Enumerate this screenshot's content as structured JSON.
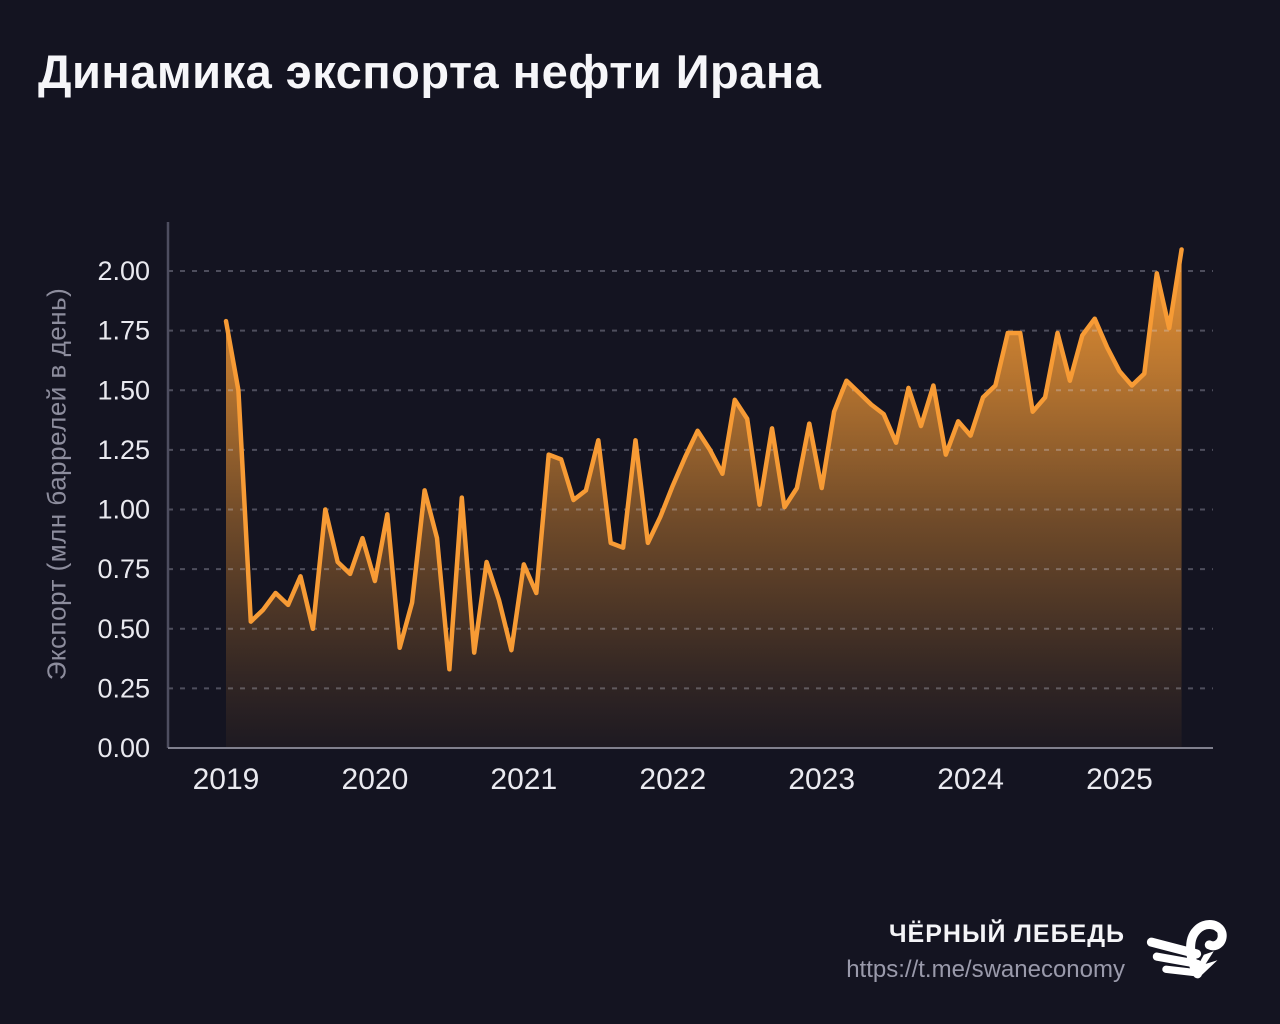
{
  "title": "Динамика экспорта нефти Ирана",
  "footer": {
    "brand": "ЧЁРНЫЙ ЛЕБЕДЬ",
    "url": "https://t.me/swaneconomy",
    "logo_icon": "swan-icon"
  },
  "colors": {
    "background": "#141421",
    "line": "#f79b35",
    "area_fill_base": "#f79b35",
    "grid": "rgba(215,215,232,0.30)",
    "y_axis_line": "#4e4e60",
    "x_axis_line": "#80808e",
    "tick_text": "#eaeaf0",
    "axis_label_text": "#8d8d9d",
    "title_text": "#f6f6f9",
    "footer_brand_text": "#f4f4f7",
    "footer_url_text": "#9a9aab"
  },
  "chart_data": {
    "type": "area",
    "title": "Динамика экспорта нефти Ирана",
    "xlabel": "",
    "ylabel": "Экспорт (млн баррелей в день)",
    "series_name": "Экспорт нефти Ирана, млн баррелей в день",
    "frequency": "monthly",
    "x_start": "2019-01",
    "x_end": "2025-06",
    "ylim": [
      0,
      2.2
    ],
    "grid": true,
    "grid_style": "dashed",
    "legend": "none",
    "y_ticks": [
      "0.00",
      "0.25",
      "0.50",
      "0.75",
      "1.00",
      "1.25",
      "1.50",
      "1.75",
      "2.00"
    ],
    "x_ticks": [
      "2019",
      "2020",
      "2021",
      "2022",
      "2023",
      "2024",
      "2025"
    ],
    "values": [
      1.79,
      1.5,
      0.53,
      0.58,
      0.65,
      0.6,
      0.72,
      0.5,
      1.0,
      0.78,
      0.73,
      0.88,
      0.7,
      0.98,
      0.42,
      0.61,
      1.08,
      0.88,
      0.33,
      1.05,
      0.4,
      0.78,
      0.62,
      0.41,
      0.77,
      0.65,
      1.23,
      1.21,
      1.04,
      1.08,
      1.29,
      0.86,
      0.84,
      1.29,
      0.86,
      0.97,
      1.1,
      1.22,
      1.33,
      1.25,
      1.15,
      1.46,
      1.38,
      1.02,
      1.34,
      1.01,
      1.09,
      1.36,
      1.09,
      1.41,
      1.54,
      1.49,
      1.44,
      1.4,
      1.28,
      1.51,
      1.35,
      1.52,
      1.23,
      1.37,
      1.31,
      1.47,
      1.52,
      1.74,
      1.74,
      1.41,
      1.47,
      1.74,
      1.54,
      1.73,
      1.8,
      1.68,
      1.58,
      1.52,
      1.57,
      1.99,
      1.76,
      2.09
    ]
  }
}
